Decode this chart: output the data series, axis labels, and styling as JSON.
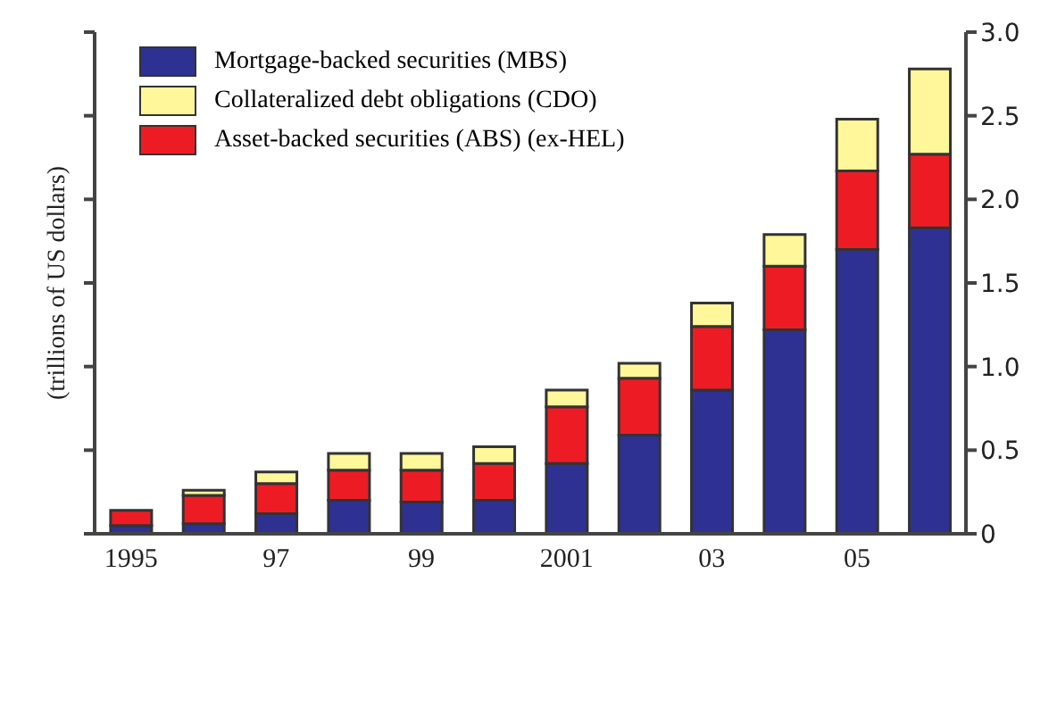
{
  "chart_data": {
    "type": "bar",
    "stacked": true,
    "ylabel": "(trillions of US dollars)",
    "categories": [
      "1995",
      null,
      "97",
      null,
      "99",
      null,
      "2001",
      null,
      "03",
      null,
      "05",
      null
    ],
    "series": [
      {
        "name": "Mortgage-backed securities (MBS)",
        "color": "#2e3192",
        "values": [
          0.05,
          0.06,
          0.12,
          0.2,
          0.19,
          0.2,
          0.42,
          0.59,
          0.86,
          1.22,
          1.7,
          1.83
        ]
      },
      {
        "name": "Asset-backed securities (ABS) (ex-HEL)",
        "color": "#ed1c24",
        "values": [
          0.09,
          0.17,
          0.18,
          0.18,
          0.19,
          0.22,
          0.34,
          0.34,
          0.38,
          0.38,
          0.47,
          0.44
        ]
      },
      {
        "name": "Collateralized debt obligations (CDO)",
        "color": "#fff799",
        "values": [
          0,
          0.03,
          0.07,
          0.1,
          0.1,
          0.1,
          0.1,
          0.09,
          0.14,
          0.19,
          0.31,
          0.51
        ]
      }
    ],
    "ylim": [
      0,
      3
    ],
    "yticks": [
      0,
      0.5,
      {
        "value": 1,
        "label": "1.0"
      },
      1.5,
      {
        "value": 2,
        "label": "2.0"
      },
      2.5,
      {
        "value": 3,
        "label": "3.0"
      }
    ],
    "grid": false,
    "legend": "top left"
  }
}
